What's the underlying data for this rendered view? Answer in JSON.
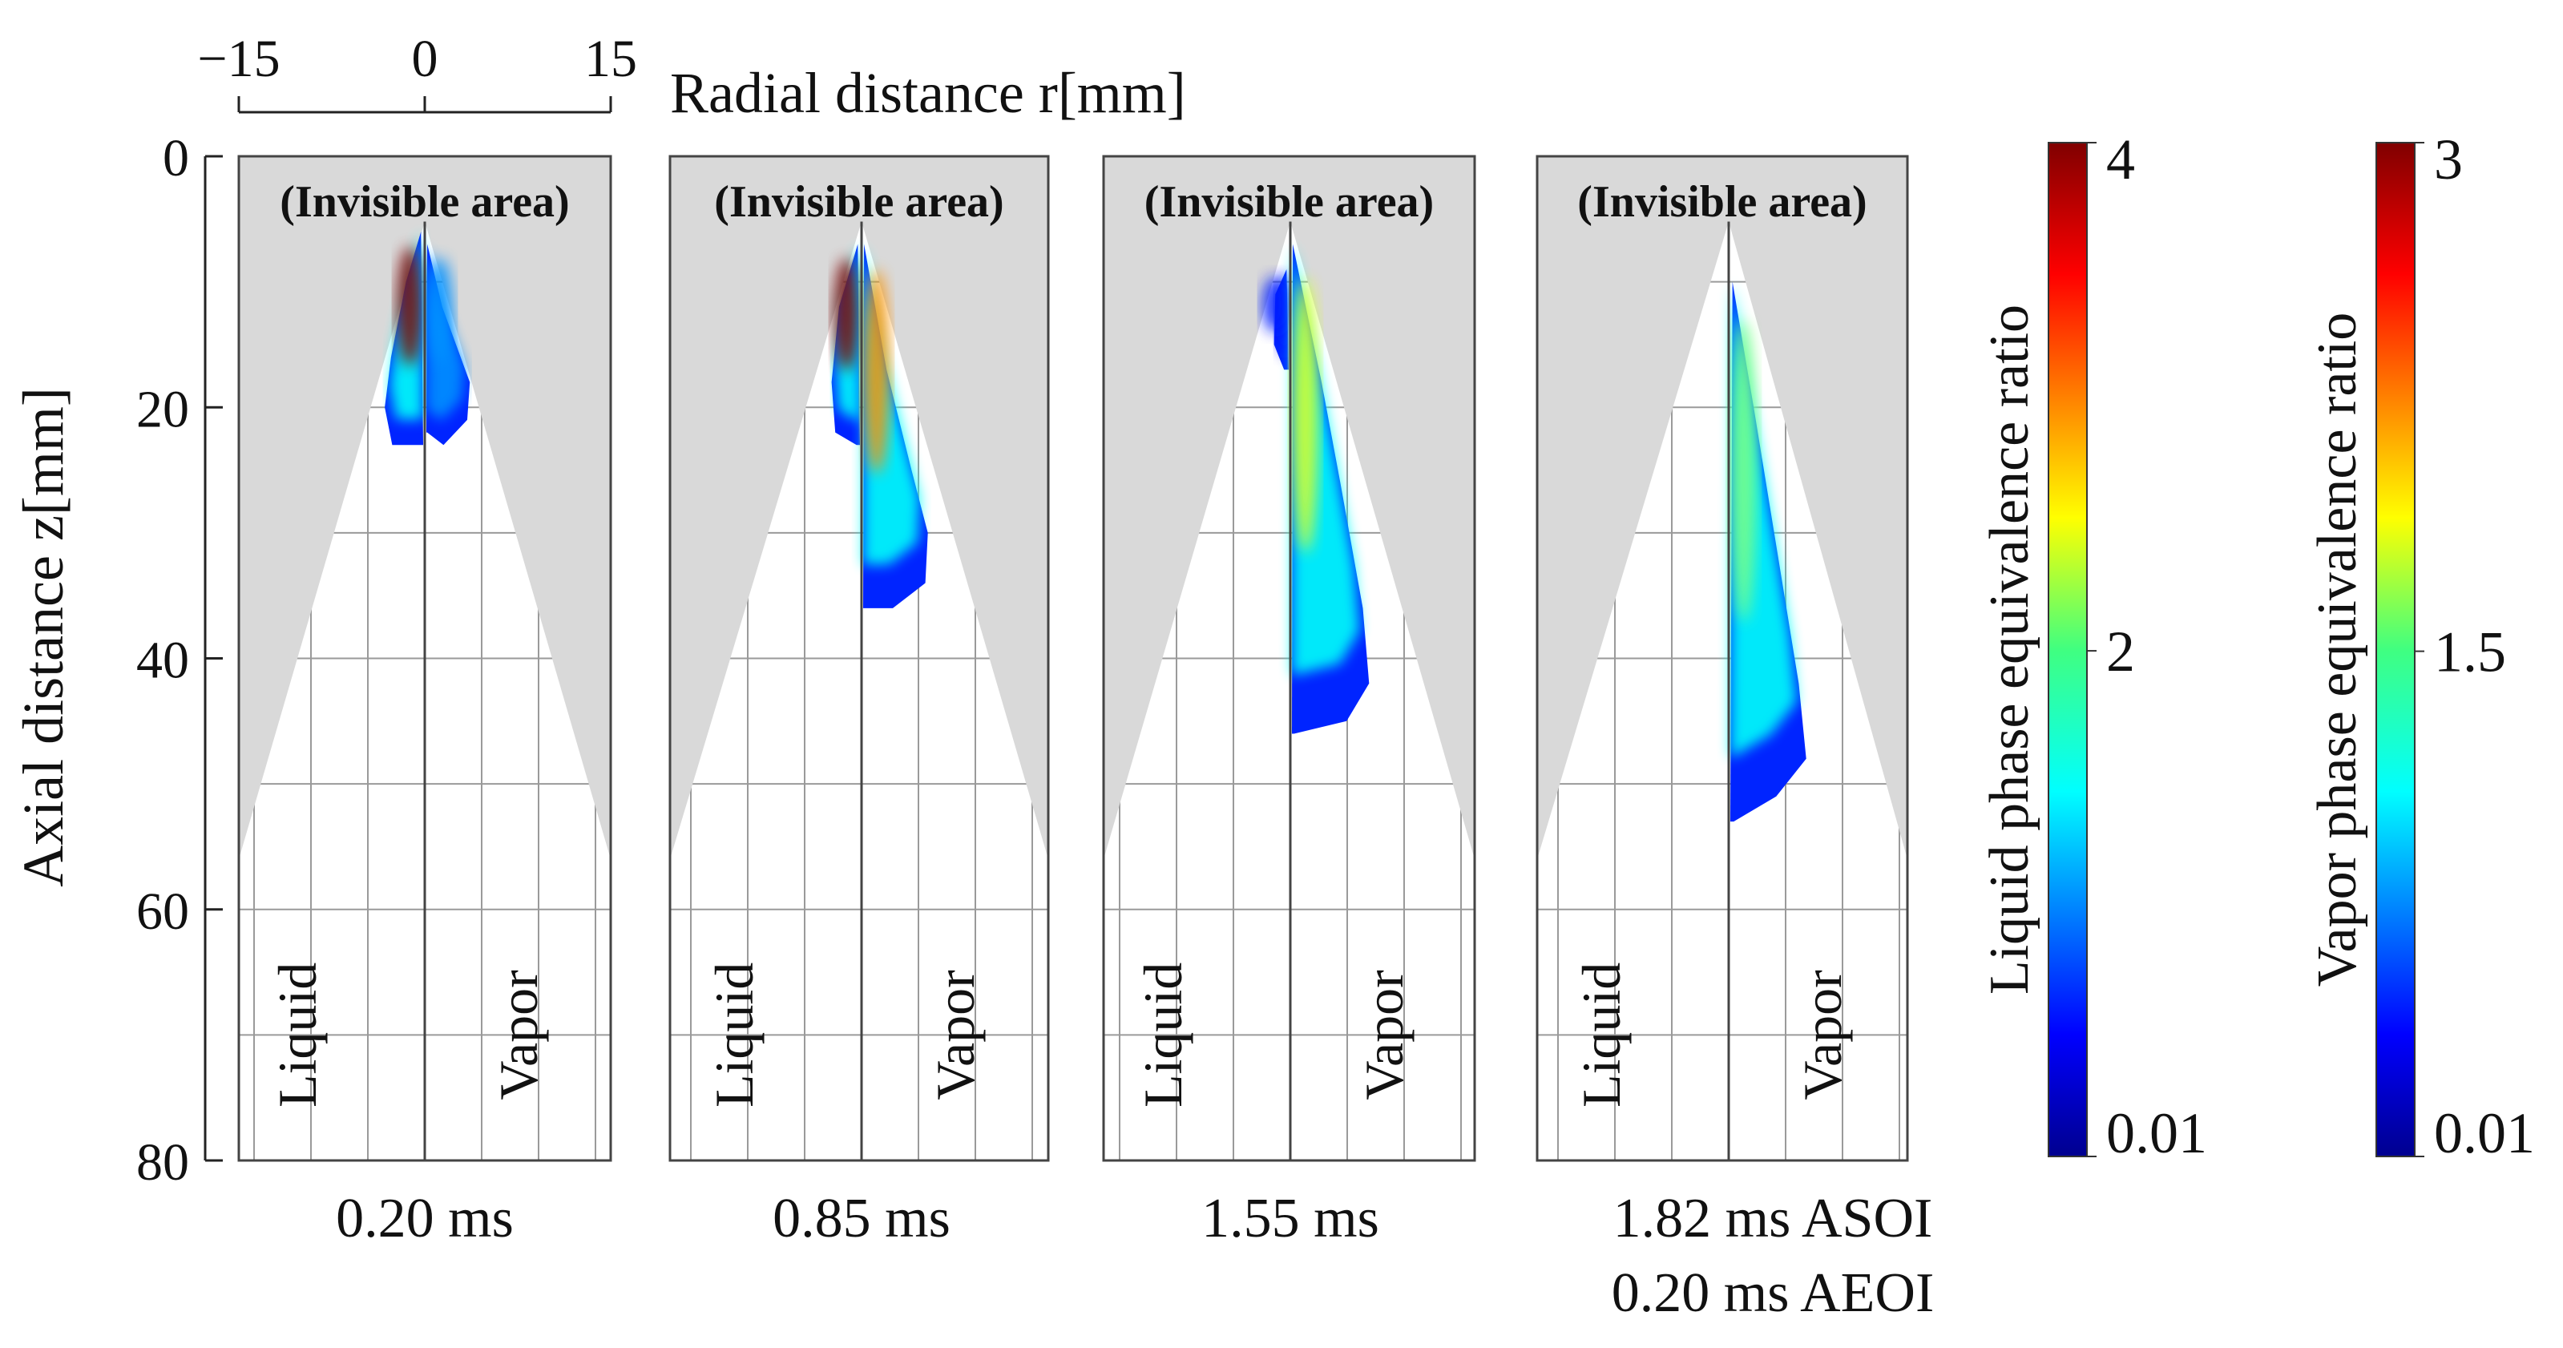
{
  "chart_data": {
    "type": "heatmap",
    "x_axis": {
      "label": "Radial distance r[mm]",
      "ticks": [
        {
          "value": -15,
          "label": "−15"
        },
        {
          "value": 0,
          "label": "0"
        },
        {
          "value": 15,
          "label": "15"
        }
      ],
      "range": [
        -15,
        15
      ]
    },
    "y_axis": {
      "label": "Axial distance z[mm]",
      "ticks": [
        {
          "value": 0,
          "label": "0"
        },
        {
          "value": 20,
          "label": "20"
        },
        {
          "value": 40,
          "label": "40"
        },
        {
          "value": 60,
          "label": "60"
        },
        {
          "value": 80,
          "label": "80"
        }
      ],
      "range": [
        0,
        80
      ]
    },
    "grid": true,
    "invisible_label": "(Invisible area)",
    "side_labels": {
      "left": "Liquid",
      "right": "Vapor"
    },
    "panels": [
      {
        "time_lines": [
          "0.20 ms"
        ],
        "liquid": {
          "tip_z": 6,
          "extent": [
            [
              -0.3,
              6
            ],
            [
              -1.5,
              10
            ],
            [
              -2.7,
              16
            ],
            [
              -3.2,
              20
            ],
            [
              -2.6,
              23
            ],
            [
              -0.2,
              23
            ]
          ],
          "core_max": 4
        },
        "vapor": {
          "extent": [
            [
              0.2,
              7
            ],
            [
              1.4,
              12
            ],
            [
              3.6,
              18
            ],
            [
              3.4,
              21
            ],
            [
              1.5,
              23
            ],
            [
              0.2,
              22
            ]
          ],
          "peak": 0.8
        }
      },
      {
        "time_lines": [
          "0.85 ms"
        ],
        "liquid": {
          "tip_z": 7,
          "extent": [
            [
              -0.3,
              7
            ],
            [
              -1.8,
              12
            ],
            [
              -2.4,
              18
            ],
            [
              -2.1,
              22
            ],
            [
              -0.4,
              23
            ]
          ],
          "core_max": 4
        },
        "vapor": {
          "extent": [
            [
              0.2,
              7
            ],
            [
              2.0,
              17
            ],
            [
              4.0,
              25
            ],
            [
              5.3,
              30
            ],
            [
              5.1,
              34
            ],
            [
              2.5,
              36
            ],
            [
              0.2,
              36
            ]
          ],
          "peak": 2.2
        }
      },
      {
        "time_lines": [
          "1.55 ms"
        ],
        "liquid": {
          "tip_z": 10,
          "extent": [
            [
              -0.3,
              9
            ],
            [
              -1.2,
              11
            ],
            [
              -1.3,
              15
            ],
            [
              -0.5,
              17
            ]
          ],
          "core_max": 0.6
        },
        "vapor": {
          "extent": [
            [
              0.2,
              7
            ],
            [
              2.5,
              18
            ],
            [
              4.0,
              26
            ],
            [
              5.8,
              36
            ],
            [
              6.3,
              42
            ],
            [
              4.5,
              45
            ],
            [
              0.3,
              46
            ]
          ],
          "peak": 1.8
        }
      },
      {
        "time_lines": [
          "1.82 ms ASOI",
          "0.20 ms AEOI"
        ],
        "liquid": null,
        "vapor": {
          "extent": [
            [
              0.3,
              10
            ],
            [
              2.0,
              20
            ],
            [
              3.8,
              31
            ],
            [
              5.6,
              42
            ],
            [
              6.2,
              48
            ],
            [
              3.8,
              51
            ],
            [
              0.4,
              53
            ]
          ],
          "peak": 1.5
        }
      }
    ],
    "colorbars": [
      {
        "label": "Liquid phase equivalence ratio",
        "min": 0.01,
        "max": 4,
        "ticks": [
          {
            "value": 4,
            "label": "4"
          },
          {
            "value": 2,
            "label": "2"
          },
          {
            "value": 0.01,
            "label": "0.01"
          }
        ]
      },
      {
        "label": "Vapor phase equivalence ratio",
        "min": 0.01,
        "max": 3,
        "ticks": [
          {
            "value": 3,
            "label": "3"
          },
          {
            "value": 1.5,
            "label": "1.5"
          },
          {
            "value": 0.01,
            "label": "0.01"
          }
        ]
      }
    ],
    "colormap": "jet"
  }
}
